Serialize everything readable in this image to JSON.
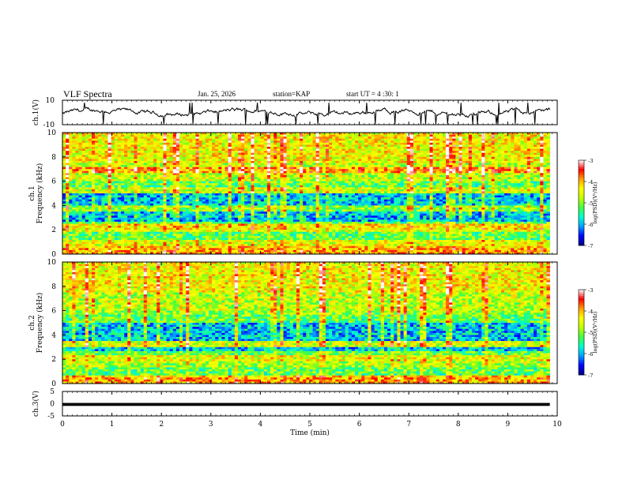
{
  "header": {
    "title": "VLF Spectra",
    "date": "Jan. 25, 2026",
    "station": "station=KAP",
    "start_time": "start UT = 4 :30: 1"
  },
  "colors": {
    "trace": "#000000",
    "frame": "#000000",
    "colormap": [
      "#000080",
      "#0000ff",
      "#00a0ff",
      "#00ffd0",
      "#40ff40",
      "#c0ff00",
      "#ffff00",
      "#ffa000",
      "#ff0000",
      "#ffffff"
    ]
  },
  "chart_data": [
    {
      "type": "line",
      "name": "waveform-ch1",
      "ylabel": "ch.1(V)",
      "ylim": [
        -10,
        10
      ],
      "yticks": [
        "10",
        "-10"
      ],
      "xlim": [
        0,
        9.85
      ],
      "description_values": "noisy voltage trace fluctuating roughly between -8 and 6 V with occasional spikes"
    },
    {
      "type": "heatmap",
      "name": "spectrogram-ch1",
      "ylabel": "ch.1\nFrequency (kHz)",
      "ylim": [
        0,
        10
      ],
      "yticks": [
        "0",
        "2",
        "4",
        "6",
        "8",
        "10"
      ],
      "xlim": [
        0,
        9.85
      ],
      "bands": [
        {
          "f": 0.2,
          "level": -4.0
        },
        {
          "f": 0.5,
          "level": -4.2
        },
        {
          "f": 0.9,
          "level": -4.5
        },
        {
          "f": 2.0,
          "level": -4.6
        },
        {
          "f": 2.3,
          "level": -4.3
        },
        {
          "f": 3.7,
          "level": -5.0
        },
        {
          "f": 5.3,
          "level": -4.7
        },
        {
          "f": 6.9,
          "level": -3.9
        }
      ],
      "colorbar": {
        "label": "log(PSD)(V²/Hz)",
        "range": [
          -7,
          -3
        ],
        "ticks": [
          "-3",
          "-4",
          "-5",
          "-6",
          "-7"
        ]
      }
    },
    {
      "type": "heatmap",
      "name": "spectrogram-ch2",
      "ylabel": "ch.2\nFrequency (kHz)",
      "ylim": [
        0,
        10
      ],
      "yticks": [
        "0",
        "2",
        "4",
        "6",
        "8",
        "10"
      ],
      "xlim": [
        0,
        9.85
      ],
      "bands": [
        {
          "f": 0.2,
          "level": -4.0
        },
        {
          "f": 0.5,
          "level": -4.2
        },
        {
          "f": 1.6,
          "level": -4.8
        },
        {
          "f": 2.1,
          "level": -4.5
        },
        {
          "f": 3.3,
          "level": -4.6
        },
        {
          "f": 5.9,
          "level": -4.9
        },
        {
          "f": 7.1,
          "level": -4.8
        }
      ],
      "colorbar": {
        "label": "log(PSD)(V²/Hz)",
        "range": [
          -7,
          -3
        ],
        "ticks": [
          "-3",
          "-4",
          "-5",
          "-6",
          "-7"
        ]
      }
    },
    {
      "type": "line",
      "name": "waveform-ch3",
      "ylabel": "ch.3(V)",
      "ylim": [
        -5,
        5
      ],
      "yticks": [
        "5",
        "0",
        "-5"
      ],
      "xlim": [
        0,
        9.85
      ],
      "level": -0.3,
      "band_halfwidth": 0.6
    }
  ],
  "xaxis": {
    "label": "Time (min)",
    "range": [
      0,
      10
    ],
    "ticks": [
      "0",
      "1",
      "2",
      "3",
      "4",
      "5",
      "6",
      "7",
      "8",
      "9",
      "10"
    ]
  }
}
